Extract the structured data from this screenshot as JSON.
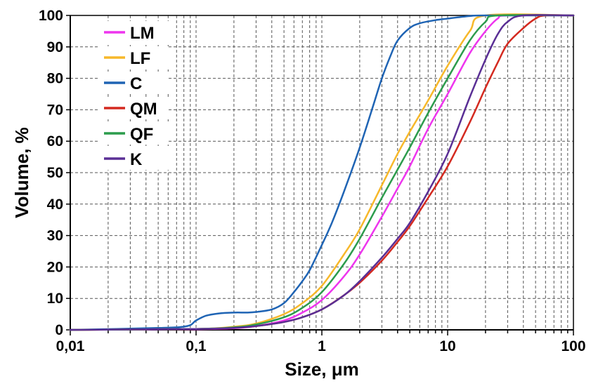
{
  "chart_data": {
    "type": "line",
    "title": "",
    "xlabel": "Size, μm",
    "ylabel": "Volume, %",
    "xscale": "log",
    "xlim": [
      0.01,
      100
    ],
    "ylim": [
      0,
      100
    ],
    "grid": "dashed, log minor ticks on x",
    "legend_position": "top-left",
    "x_ticks": [
      "0,01",
      "0,1",
      "1",
      "10",
      "100"
    ],
    "y_ticks": [
      "0",
      "10",
      "20",
      "30",
      "40",
      "50",
      "60",
      "70",
      "80",
      "90",
      "100"
    ],
    "series": [
      {
        "name": "LM",
        "color": "#ee35ee",
        "x": [
          0.01,
          0.1,
          0.2,
          0.3,
          0.5,
          0.7,
          1,
          1.5,
          2,
          3,
          4,
          5,
          7,
          10,
          15,
          20,
          25,
          30,
          100
        ],
        "y": [
          0,
          0.2,
          0.5,
          1.2,
          3,
          5.5,
          9.5,
          17,
          24,
          36,
          45,
          52,
          64,
          75,
          88,
          95,
          99,
          100,
          100
        ]
      },
      {
        "name": "LF",
        "color": "#f7b82a",
        "x": [
          0.01,
          0.1,
          0.2,
          0.3,
          0.5,
          0.7,
          1,
          1.5,
          2,
          3,
          4,
          5,
          7,
          10,
          15,
          20,
          100
        ],
        "y": [
          0,
          0.3,
          1,
          2,
          5,
          8.5,
          14,
          24,
          32,
          46,
          56,
          63,
          73,
          84,
          95,
          100,
          100
        ]
      },
      {
        "name": "C",
        "color": "#1f64b4",
        "x": [
          0.01,
          0.05,
          0.085,
          0.1,
          0.12,
          0.15,
          0.2,
          0.25,
          0.3,
          0.4,
          0.5,
          0.6,
          0.7,
          0.8,
          1,
          1.2,
          1.5,
          2,
          2.5,
          3,
          3.5,
          4,
          5,
          6,
          8,
          10,
          15,
          20,
          100
        ],
        "y": [
          0,
          0.6,
          1.2,
          3,
          4.5,
          5.2,
          5.5,
          5.5,
          5.7,
          6.5,
          8.5,
          12,
          15.5,
          19,
          27,
          34,
          44,
          58,
          70,
          80,
          87,
          92,
          96,
          97.5,
          98.5,
          99,
          99.8,
          100,
          100
        ]
      },
      {
        "name": "QM",
        "color": "#d42a20",
        "x": [
          0.01,
          0.1,
          0.2,
          0.3,
          0.5,
          0.7,
          1,
          1.5,
          2,
          3,
          4,
          5,
          7,
          10,
          15,
          20,
          25,
          30,
          40,
          50,
          60,
          100
        ],
        "y": [
          0,
          0.3,
          0.6,
          1.2,
          2.5,
          4,
          6.5,
          11,
          15,
          22,
          28,
          33,
          42,
          52,
          66,
          77,
          85,
          91,
          96,
          99,
          100,
          100
        ]
      },
      {
        "name": "QF",
        "color": "#2c9c4c",
        "x": [
          0.01,
          0.1,
          0.2,
          0.3,
          0.5,
          0.7,
          1,
          1.5,
          2,
          3,
          4,
          5,
          7,
          10,
          15,
          20,
          25,
          100
        ],
        "y": [
          0,
          0.3,
          0.8,
          1.7,
          4,
          7,
          12,
          21,
          29,
          42,
          51,
          58,
          69,
          80,
          92,
          98,
          100,
          100
        ]
      },
      {
        "name": "K",
        "color": "#5a2f95",
        "x": [
          0.01,
          0.1,
          0.2,
          0.3,
          0.5,
          0.7,
          1,
          1.5,
          2,
          3,
          4,
          5,
          7,
          10,
          15,
          20,
          25,
          30,
          40,
          100
        ],
        "y": [
          0,
          0.3,
          0.6,
          1.2,
          2.5,
          4,
          6.5,
          11,
          15.5,
          23,
          29,
          34,
          44,
          56,
          74,
          86,
          94,
          98,
          100,
          100
        ]
      }
    ]
  }
}
